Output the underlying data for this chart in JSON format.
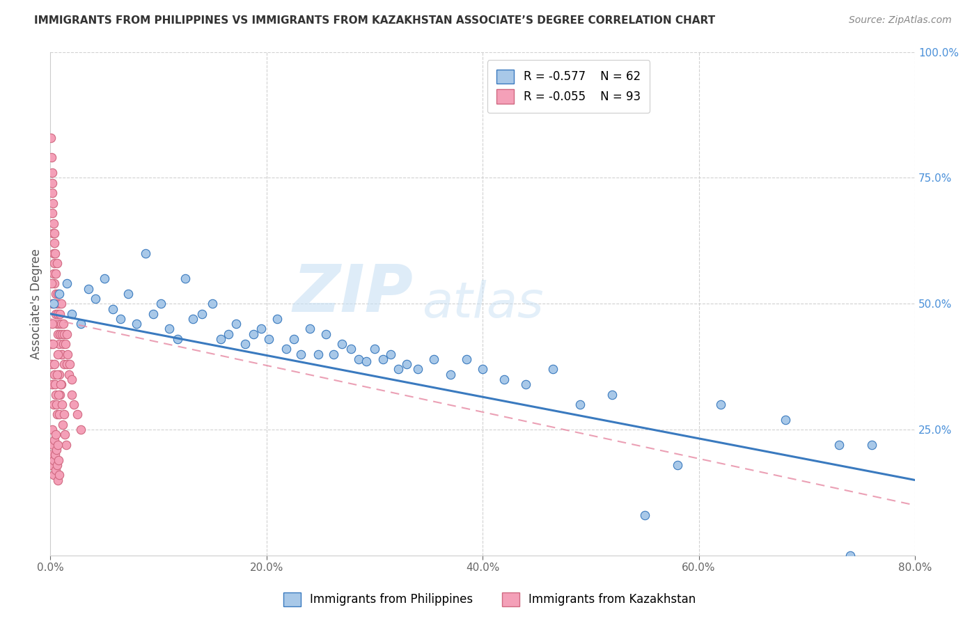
{
  "title": "IMMIGRANTS FROM PHILIPPINES VS IMMIGRANTS FROM KAZAKHSTAN ASSOCIATE’S DEGREE CORRELATION CHART",
  "source": "Source: ZipAtlas.com",
  "ylabel": "Associate's Degree",
  "yright_ticks": [
    "25.0%",
    "50.0%",
    "75.0%",
    "100.0%"
  ],
  "yright_vals": [
    25,
    50,
    75,
    100
  ],
  "xlabel_ticks": [
    "0.0%",
    "20.0%",
    "40.0%",
    "60.0%",
    "80.0%"
  ],
  "xlabel_vals": [
    0,
    20,
    40,
    60,
    80
  ],
  "legend_label1": "Immigrants from Philippines",
  "legend_label2": "Immigrants from Kazakhstan",
  "R1": -0.577,
  "N1": 62,
  "R2": -0.055,
  "N2": 93,
  "color_philippines": "#a8c8e8",
  "color_kazakhstan": "#f4a0b8",
  "trendline_color_philippines": "#3a7abf",
  "trendline_color_kazakhstan": "#e890a8",
  "watermark_zip": "ZIP",
  "watermark_atlas": "atlas",
  "philippines_x": [
    0.3,
    0.8,
    1.5,
    2.0,
    2.8,
    3.5,
    4.2,
    5.0,
    5.8,
    6.5,
    7.2,
    8.0,
    8.8,
    9.5,
    10.2,
    11.0,
    11.8,
    12.5,
    13.2,
    14.0,
    15.0,
    15.8,
    16.5,
    17.2,
    18.0,
    18.8,
    19.5,
    20.2,
    21.0,
    21.8,
    22.5,
    23.2,
    24.0,
    24.8,
    25.5,
    26.2,
    27.0,
    27.8,
    28.5,
    29.2,
    30.0,
    30.8,
    31.5,
    32.2,
    33.0,
    34.0,
    35.5,
    37.0,
    38.5,
    40.0,
    42.0,
    44.0,
    46.5,
    49.0,
    52.0,
    55.0,
    58.0,
    62.0,
    68.0,
    73.0,
    74.0,
    76.0
  ],
  "philippines_y": [
    50.0,
    52.0,
    54.0,
    48.0,
    46.0,
    53.0,
    51.0,
    55.0,
    49.0,
    47.0,
    52.0,
    46.0,
    60.0,
    48.0,
    50.0,
    45.0,
    43.0,
    55.0,
    47.0,
    48.0,
    50.0,
    43.0,
    44.0,
    46.0,
    42.0,
    44.0,
    45.0,
    43.0,
    47.0,
    41.0,
    43.0,
    40.0,
    45.0,
    40.0,
    44.0,
    40.0,
    42.0,
    41.0,
    39.0,
    38.5,
    41.0,
    39.0,
    40.0,
    37.0,
    38.0,
    37.0,
    39.0,
    36.0,
    39.0,
    37.0,
    35.0,
    34.0,
    37.0,
    30.0,
    32.0,
    8.0,
    18.0,
    30.0,
    27.0,
    22.0,
    0.0,
    22.0
  ],
  "kazakhstan_x": [
    0.05,
    0.1,
    0.15,
    0.15,
    0.2,
    0.2,
    0.25,
    0.25,
    0.3,
    0.3,
    0.3,
    0.35,
    0.35,
    0.4,
    0.4,
    0.45,
    0.5,
    0.5,
    0.5,
    0.6,
    0.6,
    0.6,
    0.7,
    0.7,
    0.7,
    0.8,
    0.8,
    0.8,
    0.9,
    0.9,
    1.0,
    1.0,
    1.0,
    1.1,
    1.1,
    1.2,
    1.2,
    1.3,
    1.3,
    1.4,
    1.5,
    1.5,
    1.6,
    1.7,
    1.8,
    2.0,
    2.0,
    2.2,
    2.5,
    2.8,
    0.05,
    0.1,
    0.2,
    0.3,
    0.4,
    0.5,
    0.6,
    0.7,
    0.8,
    0.9,
    1.0,
    0.1,
    0.2,
    0.15,
    0.25,
    0.35,
    0.45,
    0.55,
    0.65,
    0.75,
    0.85,
    0.95,
    1.05,
    1.15,
    1.25,
    1.35,
    1.45,
    0.08,
    0.12,
    0.18,
    0.22,
    0.28,
    0.32,
    0.38,
    0.42,
    0.48,
    0.52,
    0.58,
    0.62,
    0.68,
    0.72,
    0.78,
    0.82
  ],
  "kazakhstan_y": [
    83.0,
    79.0,
    76.0,
    72.0,
    74.0,
    68.0,
    70.0,
    64.0,
    66.0,
    60.0,
    56.0,
    62.0,
    58.0,
    54.0,
    64.0,
    60.0,
    56.0,
    52.0,
    48.0,
    50.0,
    46.0,
    58.0,
    52.0,
    48.0,
    44.0,
    50.0,
    46.0,
    42.0,
    48.0,
    44.0,
    50.0,
    46.0,
    40.0,
    44.0,
    40.0,
    46.0,
    42.0,
    44.0,
    38.0,
    42.0,
    44.0,
    38.0,
    40.0,
    36.0,
    38.0,
    35.0,
    32.0,
    30.0,
    28.0,
    25.0,
    42.0,
    38.0,
    34.0,
    30.0,
    36.0,
    32.0,
    28.0,
    40.0,
    36.0,
    32.0,
    34.0,
    54.0,
    50.0,
    46.0,
    42.0,
    38.0,
    34.0,
    30.0,
    36.0,
    32.0,
    28.0,
    34.0,
    30.0,
    26.0,
    28.0,
    24.0,
    22.0,
    20.0,
    18.0,
    25.0,
    22.0,
    19.0,
    16.0,
    23.0,
    20.0,
    17.0,
    24.0,
    21.0,
    18.0,
    15.0,
    22.0,
    19.0,
    16.0
  ]
}
